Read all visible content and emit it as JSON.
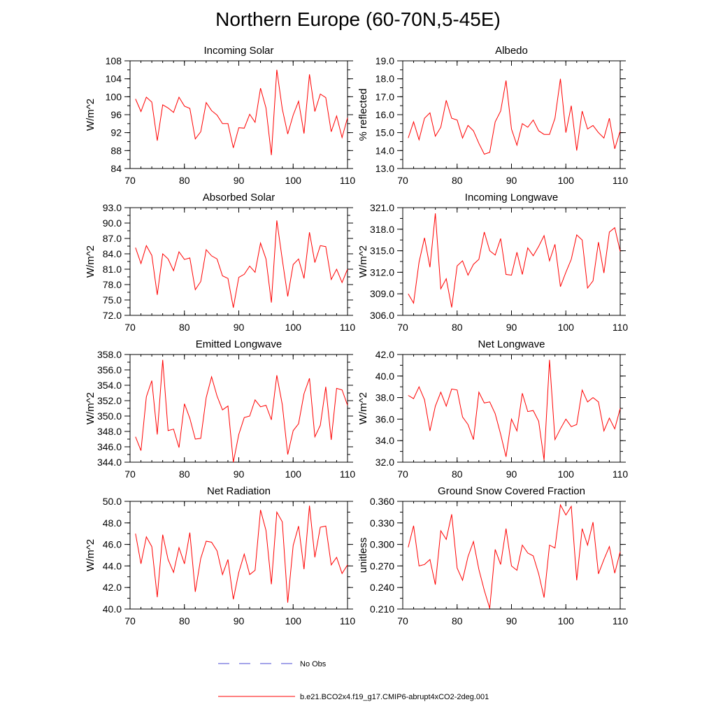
{
  "title": "Northern Europe (60-70N,5-45E)",
  "colors": {
    "model": "#ff0000",
    "obs": "#4b4bd6",
    "axis": "#000000"
  },
  "legend": {
    "obs_label": "No Obs",
    "model_label": "b.e21.BCO2x4.f19_g17.CMIP6-abrupt4xCO2-2deg.001"
  },
  "chart_data": [
    {
      "type": "line",
      "title": "Incoming Solar",
      "ylabel": "W/m^2",
      "xlim": [
        70,
        110
      ],
      "ylim": [
        84,
        108
      ],
      "xticks": [
        "70",
        "80",
        "90",
        "100",
        "110"
      ],
      "yticks": [
        "84",
        "88",
        "92",
        "96",
        "100",
        "104",
        "108"
      ],
      "x": [
        71,
        72,
        73,
        74,
        75,
        76,
        77,
        78,
        79,
        80,
        81,
        82,
        83,
        84,
        85,
        86,
        87,
        88,
        89,
        90,
        91,
        92,
        93,
        94,
        95,
        96,
        97,
        98,
        99,
        100,
        101,
        102,
        103,
        104,
        105,
        106,
        107,
        108,
        109,
        110
      ],
      "series": [
        {
          "name": "b.e21.BCO2x4.f19_g17.CMIP6-abrupt4xCO2-2deg.001",
          "values": [
            99.5,
            96.7,
            99.9,
            98.8,
            90.2,
            98.2,
            97.5,
            96.5,
            99.9,
            97.9,
            97.4,
            90.6,
            92.2,
            98.7,
            96.9,
            95.9,
            94.0,
            94.0,
            88.6,
            93.1,
            93.0,
            96.1,
            94.3,
            101.9,
            97.5,
            87.0,
            106.0,
            97.3,
            91.7,
            95.9,
            99.0,
            91.8,
            105.0,
            96.7,
            100.6,
            99.8,
            92.2,
            95.7,
            90.9,
            95.3
          ]
        }
      ]
    },
    {
      "type": "line",
      "title": "Albedo",
      "ylabel": "% reflected",
      "xlim": [
        70,
        110
      ],
      "ylim": [
        13.0,
        19.0
      ],
      "xticks": [
        "70",
        "80",
        "90",
        "100",
        "110"
      ],
      "yticks": [
        "13.0",
        "14.0",
        "15.0",
        "16.0",
        "17.0",
        "18.0",
        "19.0"
      ],
      "x": [
        71,
        72,
        73,
        74,
        75,
        76,
        77,
        78,
        79,
        80,
        81,
        82,
        83,
        84,
        85,
        86,
        87,
        88,
        89,
        90,
        91,
        92,
        93,
        94,
        95,
        96,
        97,
        98,
        99,
        100,
        101,
        102,
        103,
        104,
        105,
        106,
        107,
        108,
        109,
        110
      ],
      "series": [
        {
          "name": "b.e21.BCO2x4.f19_g17.CMIP6-abrupt4xCO2-2deg.001",
          "values": [
            14.7,
            15.6,
            14.6,
            15.8,
            16.1,
            14.8,
            15.3,
            16.8,
            15.8,
            15.7,
            14.7,
            15.4,
            15.1,
            14.4,
            13.8,
            13.9,
            15.6,
            16.2,
            17.9,
            15.2,
            14.3,
            15.5,
            15.3,
            15.7,
            15.1,
            14.9,
            14.9,
            15.8,
            18.0,
            15.0,
            16.5,
            14.0,
            16.2,
            15.2,
            15.4,
            15.0,
            14.7,
            15.8,
            14.1,
            15.1
          ]
        }
      ]
    },
    {
      "type": "line",
      "title": "Absorbed Solar",
      "ylabel": "W/m^2",
      "xlim": [
        70,
        110
      ],
      "ylim": [
        72.0,
        93.0
      ],
      "xticks": [
        "70",
        "80",
        "90",
        "100",
        "110"
      ],
      "yticks": [
        "72.0",
        "75.0",
        "78.0",
        "81.0",
        "84.0",
        "87.0",
        "90.0",
        "93.0"
      ],
      "x": [
        71,
        72,
        73,
        74,
        75,
        76,
        77,
        78,
        79,
        80,
        81,
        82,
        83,
        84,
        85,
        86,
        87,
        88,
        89,
        90,
        91,
        92,
        93,
        94,
        95,
        96,
        97,
        98,
        99,
        100,
        101,
        102,
        103,
        104,
        105,
        106,
        107,
        108,
        109,
        110
      ],
      "series": [
        {
          "name": "b.e21.BCO2x4.f19_g17.CMIP6-abrupt4xCO2-2deg.001",
          "values": [
            85.2,
            82.1,
            85.6,
            83.7,
            76.0,
            84.0,
            83.0,
            80.7,
            84.4,
            82.9,
            83.2,
            77.0,
            78.6,
            84.8,
            83.6,
            83.0,
            79.7,
            79.2,
            73.5,
            79.4,
            80.0,
            81.6,
            80.4,
            86.1,
            83.0,
            74.5,
            90.5,
            82.9,
            75.7,
            81.9,
            83.0,
            79.2,
            88.2,
            82.3,
            85.6,
            85.4,
            79.0,
            81.0,
            78.4,
            81.0
          ]
        }
      ]
    },
    {
      "type": "line",
      "title": "Incoming Longwave",
      "ylabel": "W/m^2",
      "xlim": [
        70,
        110
      ],
      "ylim": [
        306.0,
        321.0
      ],
      "xticks": [
        "70",
        "80",
        "90",
        "100",
        "110"
      ],
      "yticks": [
        "306.0",
        "309.0",
        "312.0",
        "315.0",
        "318.0",
        "321.0"
      ],
      "x": [
        71,
        72,
        73,
        74,
        75,
        76,
        77,
        78,
        79,
        80,
        81,
        82,
        83,
        84,
        85,
        86,
        87,
        88,
        89,
        90,
        91,
        92,
        93,
        94,
        95,
        96,
        97,
        98,
        99,
        100,
        101,
        102,
        103,
        104,
        105,
        106,
        107,
        108,
        109,
        110
      ],
      "series": [
        {
          "name": "b.e21.BCO2x4.f19_g17.CMIP6-abrupt4xCO2-2deg.001",
          "values": [
            309.0,
            307.7,
            313.4,
            316.8,
            312.7,
            320.2,
            309.7,
            311.1,
            307.1,
            312.9,
            313.6,
            311.6,
            313.1,
            313.8,
            317.6,
            315.0,
            314.4,
            316.7,
            311.7,
            311.6,
            314.8,
            311.7,
            315.4,
            314.3,
            315.6,
            317.1,
            313.6,
            315.9,
            310.0,
            312.0,
            313.8,
            317.2,
            316.5,
            309.8,
            310.8,
            316.2,
            311.9,
            317.6,
            318.2,
            314.9
          ]
        }
      ]
    },
    {
      "type": "line",
      "title": "Emitted Longwave",
      "ylabel": "W/m^2",
      "xlim": [
        70,
        110
      ],
      "ylim": [
        344.0,
        358.0
      ],
      "xticks": [
        "70",
        "80",
        "90",
        "100",
        "110"
      ],
      "yticks": [
        "344.0",
        "346.0",
        "348.0",
        "350.0",
        "352.0",
        "354.0",
        "356.0",
        "358.0"
      ],
      "x": [
        71,
        72,
        73,
        74,
        75,
        76,
        77,
        78,
        79,
        80,
        81,
        82,
        83,
        84,
        85,
        86,
        87,
        88,
        89,
        90,
        91,
        92,
        93,
        94,
        95,
        96,
        97,
        98,
        99,
        100,
        101,
        102,
        103,
        104,
        105,
        106,
        107,
        108,
        109,
        110
      ],
      "series": [
        {
          "name": "b.e21.BCO2x4.f19_g17.CMIP6-abrupt4xCO2-2deg.001",
          "values": [
            347.3,
            345.5,
            352.5,
            354.6,
            347.6,
            357.3,
            348.1,
            348.3,
            345.9,
            351.6,
            349.7,
            347.0,
            347.1,
            352.4,
            355.1,
            352.6,
            350.8,
            351.3,
            344.0,
            347.6,
            349.8,
            350.0,
            352.1,
            351.2,
            351.4,
            349.5,
            355.3,
            351.5,
            345.0,
            348.1,
            349.0,
            352.9,
            354.9,
            347.3,
            348.8,
            353.8,
            346.9,
            353.6,
            353.4,
            351.4
          ]
        }
      ]
    },
    {
      "type": "line",
      "title": "Net Longwave",
      "ylabel": "W/m^2",
      "xlim": [
        70,
        110
      ],
      "ylim": [
        32.0,
        42.0
      ],
      "xticks": [
        "70",
        "80",
        "90",
        "100",
        "110"
      ],
      "yticks": [
        "32.0",
        "34.0",
        "36.0",
        "38.0",
        "40.0",
        "42.0"
      ],
      "x": [
        71,
        72,
        73,
        74,
        75,
        76,
        77,
        78,
        79,
        80,
        81,
        82,
        83,
        84,
        85,
        86,
        87,
        88,
        89,
        90,
        91,
        92,
        93,
        94,
        95,
        96,
        97,
        98,
        99,
        100,
        101,
        102,
        103,
        104,
        105,
        106,
        107,
        108,
        109,
        110
      ],
      "series": [
        {
          "name": "b.e21.BCO2x4.f19_g17.CMIP6-abrupt4xCO2-2deg.001",
          "values": [
            38.2,
            37.9,
            39.0,
            37.8,
            34.9,
            37.2,
            38.5,
            37.2,
            38.8,
            38.7,
            36.2,
            35.5,
            34.1,
            38.5,
            37.5,
            37.6,
            36.5,
            34.6,
            32.5,
            36.0,
            34.9,
            38.4,
            36.7,
            36.8,
            35.8,
            32.2,
            41.5,
            34.1,
            35.1,
            36.0,
            35.3,
            35.5,
            38.7,
            37.6,
            38.0,
            37.6,
            34.9,
            36.1,
            35.1,
            37.0
          ]
        }
      ]
    },
    {
      "type": "line",
      "title": "Net Radiation",
      "ylabel": "W/m^2",
      "xlim": [
        70,
        110
      ],
      "ylim": [
        40.0,
        50.0
      ],
      "xticks": [
        "70",
        "80",
        "90",
        "100",
        "110"
      ],
      "yticks": [
        "40.0",
        "42.0",
        "44.0",
        "46.0",
        "48.0",
        "50.0"
      ],
      "x": [
        71,
        72,
        73,
        74,
        75,
        76,
        77,
        78,
        79,
        80,
        81,
        82,
        83,
        84,
        85,
        86,
        87,
        88,
        89,
        90,
        91,
        92,
        93,
        94,
        95,
        96,
        97,
        98,
        99,
        100,
        101,
        102,
        103,
        104,
        105,
        106,
        107,
        108,
        109,
        110
      ],
      "series": [
        {
          "name": "b.e21.BCO2x4.f19_g17.CMIP6-abrupt4xCO2-2deg.001",
          "values": [
            47.0,
            44.2,
            46.7,
            45.8,
            41.1,
            46.9,
            44.6,
            43.4,
            45.7,
            44.2,
            47.1,
            41.6,
            44.7,
            46.3,
            46.2,
            45.4,
            43.2,
            44.6,
            40.9,
            43.4,
            45.1,
            43.2,
            43.6,
            49.2,
            47.3,
            42.3,
            49.0,
            48.1,
            40.6,
            45.9,
            47.7,
            43.7,
            49.6,
            44.8,
            47.6,
            47.7,
            44.1,
            44.8,
            43.3,
            44.1
          ]
        }
      ]
    },
    {
      "type": "line",
      "title": "Ground Snow Covered Fraction",
      "ylabel": "unitless",
      "xlim": [
        70,
        110
      ],
      "ylim": [
        0.21,
        0.36
      ],
      "xticks": [
        "70",
        "80",
        "90",
        "100",
        "110"
      ],
      "yticks": [
        "0.210",
        "0.240",
        "0.270",
        "0.300",
        "0.330",
        "0.360"
      ],
      "x": [
        71,
        72,
        73,
        74,
        75,
        76,
        77,
        78,
        79,
        80,
        81,
        82,
        83,
        84,
        85,
        86,
        87,
        88,
        89,
        90,
        91,
        92,
        93,
        94,
        95,
        96,
        97,
        98,
        99,
        100,
        101,
        102,
        103,
        104,
        105,
        106,
        107,
        108,
        109,
        110
      ],
      "series": [
        {
          "name": "b.e21.BCO2x4.f19_g17.CMIP6-abrupt4xCO2-2deg.001",
          "values": [
            0.296,
            0.326,
            0.27,
            0.272,
            0.279,
            0.244,
            0.319,
            0.307,
            0.342,
            0.267,
            0.25,
            0.283,
            0.304,
            0.265,
            0.236,
            0.211,
            0.293,
            0.272,
            0.322,
            0.27,
            0.264,
            0.299,
            0.288,
            0.284,
            0.259,
            0.226,
            0.299,
            0.295,
            0.355,
            0.341,
            0.353,
            0.25,
            0.322,
            0.299,
            0.331,
            0.259,
            0.279,
            0.297,
            0.26,
            0.29
          ]
        }
      ]
    }
  ]
}
